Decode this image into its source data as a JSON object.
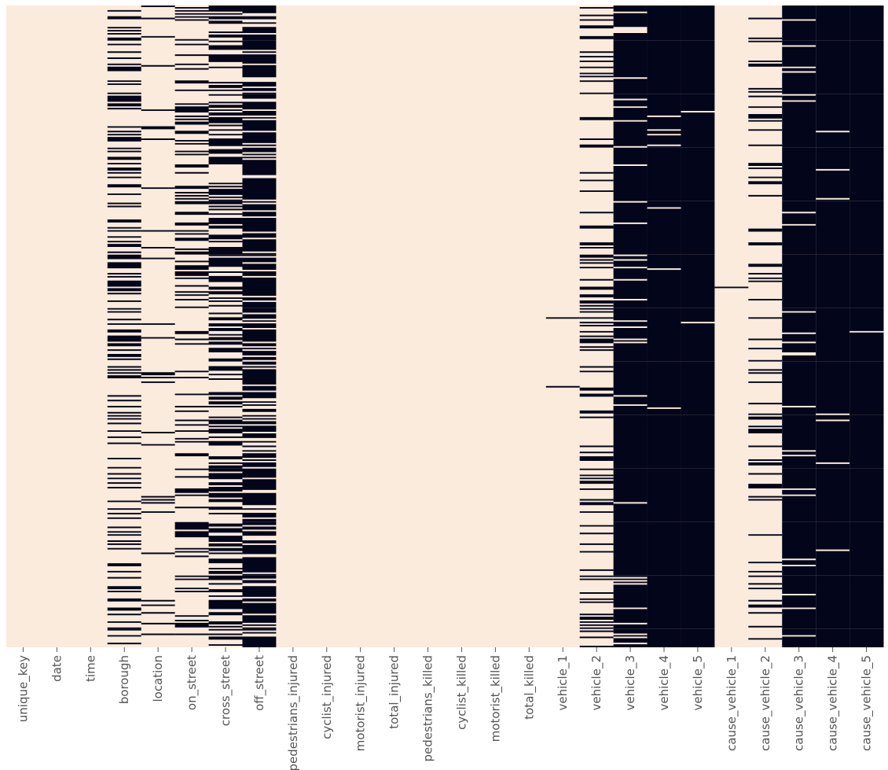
{
  "chart_data": {
    "type": "heatmap",
    "title": "",
    "xlabel": "",
    "ylabel": "",
    "colors": {
      "present": "#faebdc",
      "missing": "#03051a",
      "tick": "#555555"
    },
    "yticks": "none",
    "columns": [
      {
        "name": "unique_key",
        "missing_fraction": 0.0
      },
      {
        "name": "date",
        "missing_fraction": 0.0
      },
      {
        "name": "time",
        "missing_fraction": 0.0
      },
      {
        "name": "borough",
        "missing_fraction": 0.33
      },
      {
        "name": "location",
        "missing_fraction": 0.05
      },
      {
        "name": "on_street",
        "missing_fraction": 0.27
      },
      {
        "name": "cross_street",
        "missing_fraction": 0.48
      },
      {
        "name": "off_street",
        "missing_fraction": 0.78
      },
      {
        "name": "pedestrians_injured",
        "missing_fraction": 0.0
      },
      {
        "name": "cyclist_injured",
        "missing_fraction": 0.0
      },
      {
        "name": "motorist_injured",
        "missing_fraction": 0.0
      },
      {
        "name": "total_injured",
        "missing_fraction": 0.0
      },
      {
        "name": "pedestrians_killed",
        "missing_fraction": 0.0
      },
      {
        "name": "cyclist_killed",
        "missing_fraction": 0.0
      },
      {
        "name": "motorist_killed",
        "missing_fraction": 0.0
      },
      {
        "name": "total_killed",
        "missing_fraction": 0.0
      },
      {
        "name": "vehicle_1",
        "missing_fraction": 0.008
      },
      {
        "name": "vehicle_2",
        "missing_fraction": 0.22
      },
      {
        "name": "vehicle_3",
        "missing_fraction": 0.93
      },
      {
        "name": "vehicle_4",
        "missing_fraction": 0.985
      },
      {
        "name": "vehicle_5",
        "missing_fraction": 0.997
      },
      {
        "name": "cause_vehicle_1",
        "missing_fraction": 0.004
      },
      {
        "name": "cause_vehicle_2",
        "missing_fraction": 0.18
      },
      {
        "name": "cause_vehicle_3",
        "missing_fraction": 0.93
      },
      {
        "name": "cause_vehicle_4",
        "missing_fraction": 0.985
      },
      {
        "name": "cause_vehicle_5",
        "missing_fraction": 0.997
      }
    ]
  }
}
